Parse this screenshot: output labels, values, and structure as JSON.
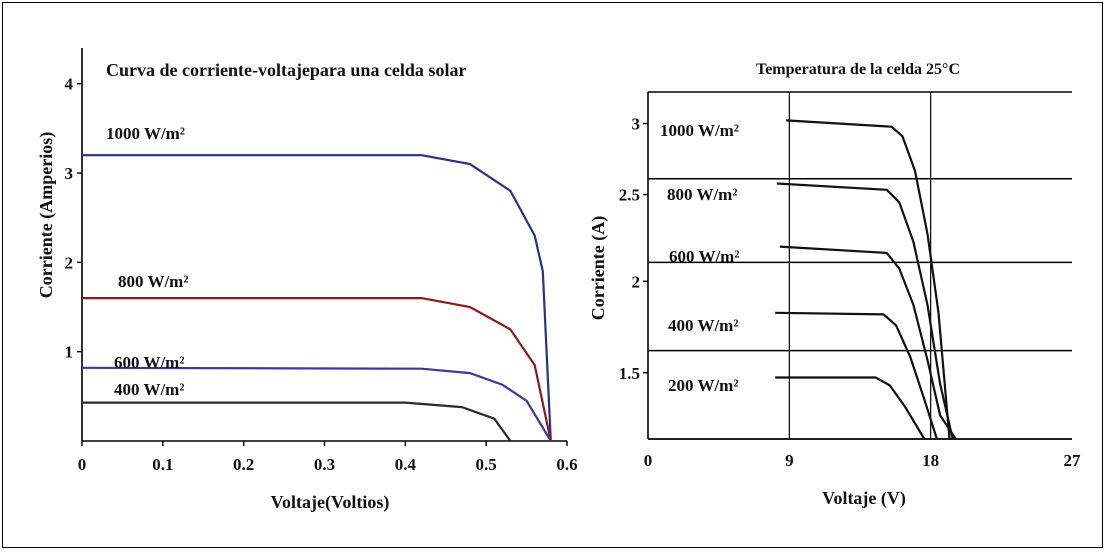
{
  "chart_data": [
    {
      "type": "line",
      "title": "Curva de corriente-voltajepara una celda solar",
      "xlabel": "Voltaje(Voltios)",
      "ylabel": "Corriente (Amperios)",
      "xlim": [
        0,
        0.6
      ],
      "ylim": [
        0,
        4.4
      ],
      "x_ticks": [
        "0",
        "0.1",
        "0.2",
        "0.3",
        "0.4",
        "0.5",
        "0.6"
      ],
      "y_ticks": [
        "1",
        "2",
        "3",
        "4"
      ],
      "grid": false,
      "series": [
        {
          "name": "1000 W/m²",
          "color": "#2a2f8a",
          "points": [
            [
              0,
              3.2
            ],
            [
              0.42,
              3.2
            ],
            [
              0.48,
              3.1
            ],
            [
              0.53,
              2.8
            ],
            [
              0.56,
              2.3
            ],
            [
              0.57,
              1.9
            ],
            [
              0.58,
              0
            ]
          ]
        },
        {
          "name": "800 W/m²",
          "color": "#8b1a1a",
          "points": [
            [
              0,
              1.6
            ],
            [
              0.42,
              1.6
            ],
            [
              0.48,
              1.5
            ],
            [
              0.53,
              1.25
            ],
            [
              0.56,
              0.85
            ],
            [
              0.58,
              0
            ]
          ]
        },
        {
          "name": "600 W/m²",
          "color": "#3a3a9a",
          "points": [
            [
              0,
              0.82
            ],
            [
              0.42,
              0.81
            ],
            [
              0.48,
              0.76
            ],
            [
              0.52,
              0.63
            ],
            [
              0.55,
              0.45
            ],
            [
              0.58,
              0
            ]
          ]
        },
        {
          "name": "400 W/m²",
          "color": "#2b2b2b",
          "points": [
            [
              0,
              0.43
            ],
            [
              0.4,
              0.43
            ],
            [
              0.47,
              0.38
            ],
            [
              0.51,
              0.25
            ],
            [
              0.53,
              0
            ]
          ]
        }
      ]
    },
    {
      "type": "line",
      "title": "Temperatura de la celda 25°C",
      "xlabel": "Voltaje (V)",
      "ylabel": "Corriente (A)",
      "xlim": [
        0,
        27
      ],
      "ylim": [
        1.0,
        3.2
      ],
      "x_ticks": [
        "0",
        "9",
        "18",
        "27"
      ],
      "y_ticks": [
        "1.5",
        "2",
        "2.5",
        "3"
      ],
      "grid": true,
      "series": [
        {
          "name": "1000 W/m²",
          "color": "#111111",
          "points": [
            [
              8.8,
              3.02
            ],
            [
              15.5,
              2.98
            ],
            [
              16.2,
              2.92
            ],
            [
              17.0,
              2.7
            ],
            [
              17.8,
              2.3
            ],
            [
              18.5,
              1.8
            ],
            [
              19.2,
              1.0
            ]
          ]
        },
        {
          "name": "800 W/m²",
          "color": "#111111",
          "points": [
            [
              8.2,
              2.62
            ],
            [
              15.2,
              2.58
            ],
            [
              16.0,
              2.5
            ],
            [
              16.9,
              2.25
            ],
            [
              17.8,
              1.85
            ],
            [
              18.6,
              1.35
            ],
            [
              19.4,
              1.0
            ]
          ]
        },
        {
          "name": "600 W/m²",
          "color": "#111111",
          "points": [
            [
              8.4,
              2.22
            ],
            [
              15.2,
              2.18
            ],
            [
              16.0,
              2.08
            ],
            [
              16.9,
              1.85
            ],
            [
              17.8,
              1.5
            ],
            [
              18.6,
              1.15
            ],
            [
              19.6,
              1.0
            ]
          ]
        },
        {
          "name": "400 W/m²",
          "color": "#111111",
          "points": [
            [
              8.1,
              1.8
            ],
            [
              15.0,
              1.79
            ],
            [
              15.8,
              1.72
            ],
            [
              16.7,
              1.52
            ],
            [
              17.6,
              1.25
            ],
            [
              18.4,
              1.0
            ]
          ]
        },
        {
          "name": "200 W/m²",
          "color": "#111111",
          "points": [
            [
              8.1,
              1.39
            ],
            [
              14.5,
              1.39
            ],
            [
              15.4,
              1.34
            ],
            [
              16.4,
              1.2
            ],
            [
              17.6,
              1.0
            ]
          ]
        }
      ]
    }
  ]
}
